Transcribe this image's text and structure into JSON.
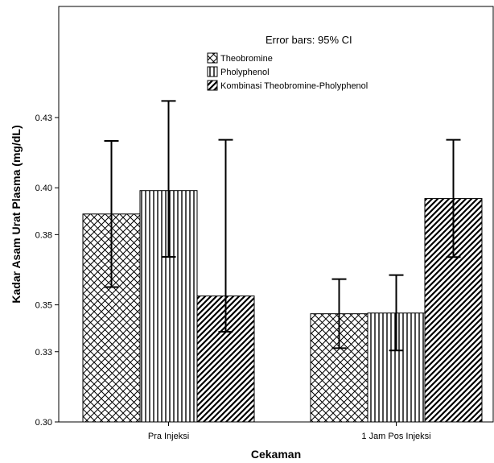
{
  "chart_data": {
    "type": "bar",
    "title": "",
    "annotation": "Error bars: 95% CI",
    "xlabel": "Cekaman",
    "ylabel": "Kadar Asam Urat Plasma (mg/dL)",
    "ylim": [
      0.3,
      0.445
    ],
    "yticks": [
      0.3,
      0.33,
      0.35,
      0.38,
      0.4,
      0.43
    ],
    "ytick_labels": [
      "0.30",
      "0.33",
      "0.35",
      "0.38",
      "0.40",
      "0.43"
    ],
    "categories": [
      "Pra Injeksi",
      "1 Jam Pos Injeksi"
    ],
    "legend_position": "top-right",
    "series": [
      {
        "name": "Theobromine",
        "pattern": "crosshatch",
        "values": [
          0.3888,
          0.3462
        ],
        "ci_low": [
          0.3576,
          0.3315
        ],
        "ci_high": [
          0.42,
          0.361
        ]
      },
      {
        "name": "Pholyphenol",
        "pattern": "vertical",
        "values": [
          0.3988,
          0.3465
        ],
        "ci_low": [
          0.3705,
          0.3305
        ],
        "ci_high": [
          0.4371,
          0.3627
        ]
      },
      {
        "name": "Kombinasi Theobromine-Pholyphenol",
        "pattern": "diagonal",
        "values": [
          0.3538,
          0.3954
        ],
        "ci_low": [
          0.3385,
          0.3704
        ],
        "ci_high": [
          0.4205,
          0.4205
        ]
      }
    ]
  }
}
